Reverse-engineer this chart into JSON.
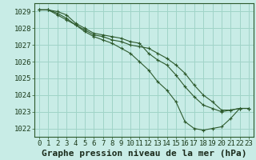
{
  "title": "Graphe pression niveau de la mer (hPa)",
  "bg_color": "#c8ece6",
  "grid_color": "#a0d4c8",
  "line_color": "#2d5a2d",
  "xlim": [
    -0.5,
    23.5
  ],
  "ylim": [
    1021.5,
    1029.5
  ],
  "yticks": [
    1022,
    1023,
    1024,
    1025,
    1026,
    1027,
    1028,
    1029
  ],
  "xticks": [
    0,
    1,
    2,
    3,
    4,
    5,
    6,
    7,
    8,
    9,
    10,
    11,
    12,
    13,
    14,
    15,
    16,
    17,
    18,
    19,
    20,
    21,
    22,
    23
  ],
  "series": [
    [
      1029.1,
      1029.1,
      1028.8,
      1028.5,
      1028.2,
      1027.8,
      1027.5,
      1027.3,
      1027.1,
      1026.8,
      1026.5,
      1026.0,
      1025.5,
      1024.8,
      1024.3,
      1023.6,
      1022.4,
      1022.0,
      1021.9,
      1022.0,
      1022.1,
      1022.6,
      1023.2,
      1023.2
    ],
    [
      1029.1,
      1029.1,
      1028.9,
      1028.6,
      1028.2,
      1027.9,
      1027.6,
      1027.5,
      1027.3,
      1027.2,
      1027.0,
      1026.9,
      1026.8,
      1026.5,
      1026.2,
      1025.8,
      1025.3,
      1024.6,
      1024.0,
      1023.6,
      1023.1,
      1023.1,
      1023.2,
      1023.2
    ],
    [
      1029.1,
      1029.1,
      1029.0,
      1028.8,
      1028.3,
      1028.0,
      1027.7,
      1027.6,
      1027.5,
      1027.4,
      1027.2,
      1027.1,
      1026.5,
      1026.1,
      1025.8,
      1025.2,
      1024.5,
      1023.9,
      1023.4,
      1023.2,
      1023.0,
      1023.1,
      1023.2,
      1023.2
    ]
  ],
  "tick_fontsize": 6.5,
  "xlabel_fontsize": 8
}
